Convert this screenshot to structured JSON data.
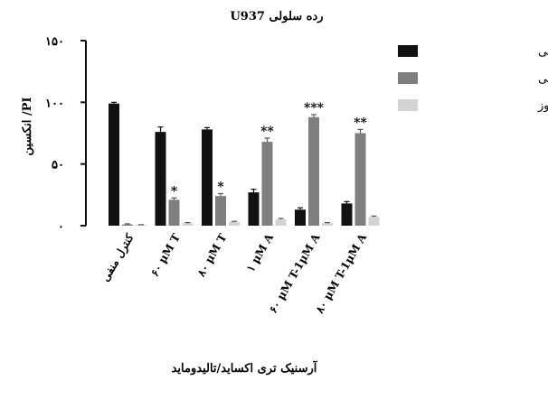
{
  "chart_data": {
    "type": "bar",
    "title": "رده سلولی U937",
    "xlabel": "آرسنیک تری اکساید/تالیدوماید",
    "ylabel": "PI/ انکسین",
    "ylim": [
      0,
      150
    ],
    "yticks": [
      "۰",
      "۵۰",
      "۱۰۰",
      "۱۵۰"
    ],
    "ytick_values": [
      0,
      50,
      100,
      150
    ],
    "categories": [
      "کنترل منفی",
      "۶۰ μM T",
      "۸۰ μM T",
      "۱ μM A",
      "۶۰ μM T-1μM A",
      "۸۰ μM T-1μM A"
    ],
    "series": [
      {
        "name": "بقاء سلولی",
        "color": "#111111",
        "values": [
          99,
          76,
          78,
          27,
          13,
          18
        ],
        "errors": [
          1,
          4,
          1.5,
          2.5,
          1.5,
          1.5
        ]
      },
      {
        "name": "آپاپتوز سلولی",
        "color": "#7f7f7f",
        "values": [
          1,
          21,
          24,
          68,
          88,
          75
        ],
        "errors": [
          0.5,
          1.5,
          2,
          3,
          2,
          3
        ]
      },
      {
        "name": "نکروز",
        "color": "#d3d3d3",
        "values": [
          0.5,
          2,
          3,
          5,
          2,
          7
        ],
        "errors": [
          0.3,
          0.5,
          0.5,
          0.8,
          0.5,
          0.8
        ]
      }
    ],
    "annotations": [
      {
        "category_index": 1,
        "series_index": 1,
        "text": "*"
      },
      {
        "category_index": 2,
        "series_index": 1,
        "text": "*"
      },
      {
        "category_index": 3,
        "series_index": 1,
        "text": "**"
      },
      {
        "category_index": 4,
        "series_index": 1,
        "text": "***"
      },
      {
        "category_index": 5,
        "series_index": 1,
        "text": "**"
      }
    ],
    "legend_position": "top-right",
    "grid": false
  }
}
